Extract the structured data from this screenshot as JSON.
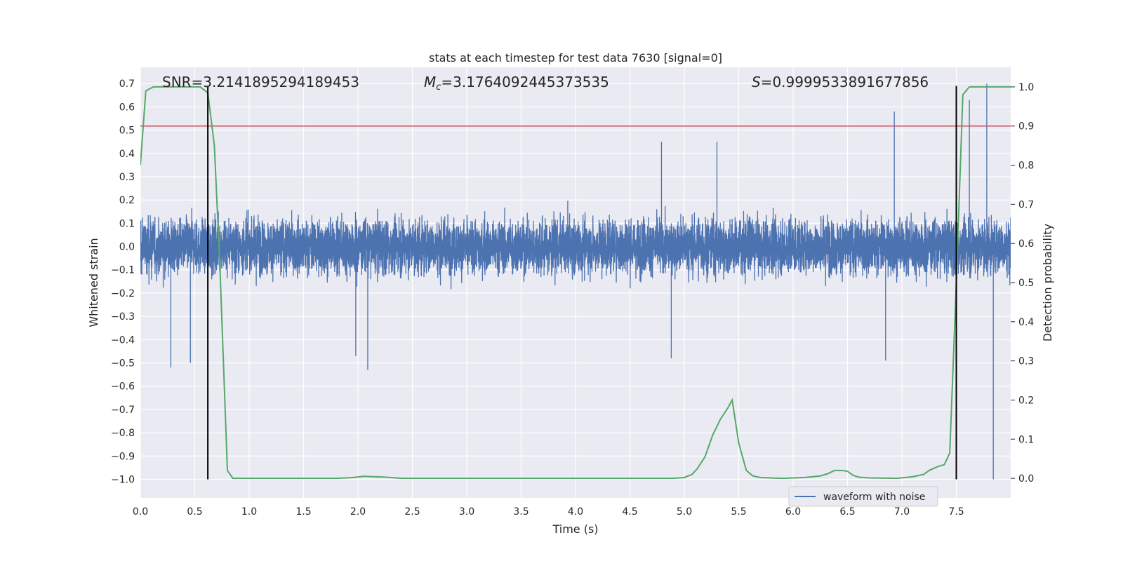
{
  "chart_data": {
    "type": "line",
    "title": "stats at each timestep for test data 7630 [signal=0]",
    "xlabel": "Time (s)",
    "ylabel": "Whitened strain",
    "y2label": "Detection probability",
    "xlim": [
      0,
      8
    ],
    "ylim": [
      -1.08,
      0.77
    ],
    "y2lim": [
      -0.05,
      1.05
    ],
    "xticks": [
      0.0,
      0.5,
      1.0,
      1.5,
      2.0,
      2.5,
      3.0,
      3.5,
      4.0,
      4.5,
      5.0,
      5.5,
      6.0,
      6.5,
      7.0,
      7.5
    ],
    "xtick_labels": [
      "0.0",
      "0.5",
      "1.0",
      "1.5",
      "2.0",
      "2.5",
      "3.0",
      "3.5",
      "4.0",
      "4.5",
      "5.0",
      "5.5",
      "6.0",
      "6.5",
      "7.0",
      "7.5"
    ],
    "yticks": [
      0.7,
      0.6,
      0.5,
      0.4,
      0.3,
      0.2,
      0.1,
      0.0,
      -0.1,
      -0.2,
      -0.3,
      -0.4,
      -0.5,
      -0.6,
      -0.7,
      -0.8,
      -0.9,
      -1.0
    ],
    "ytick_labels": [
      "0.7",
      "0.6",
      "0.5",
      "0.4",
      "0.3",
      "0.2",
      "0.1",
      "0.0",
      "−0.1",
      "−0.2",
      "−0.3",
      "−0.4",
      "−0.5",
      "−0.6",
      "−0.7",
      "−0.8",
      "−0.9",
      "−1.0"
    ],
    "y2ticks": [
      1.0,
      0.9,
      0.8,
      0.7,
      0.6,
      0.5,
      0.4,
      0.3,
      0.2,
      0.1,
      0.0
    ],
    "y2tick_labels": [
      "1.0",
      "0.9",
      "0.8",
      "0.7",
      "0.6",
      "0.5",
      "0.4",
      "0.3",
      "0.2",
      "0.1",
      "0.0"
    ],
    "annotations": {
      "snr": "SNR=3.2141895294189453",
      "mc_symbol": "M",
      "mc_sub": "c",
      "mc_value": "=3.1764092445373535",
      "s_symbol": "S",
      "s_value": "=0.9999533891677856"
    },
    "threshold": {
      "value": 0.9,
      "axis": "right",
      "color": "#c44e52"
    },
    "vlines": [
      0.62,
      7.5
    ],
    "vline_range": [
      -1.0,
      0.69
    ],
    "series": [
      {
        "name": "waveform with noise",
        "axis": "left",
        "color": "#4c72b0",
        "kind": "noise",
        "sigma": 0.095,
        "envelope_upper_typical": 0.3,
        "envelope_lower_typical": -0.3,
        "spikes": [
          {
            "x": 0.28,
            "y": -0.52
          },
          {
            "x": 0.46,
            "y": -0.5
          },
          {
            "x": 2.09,
            "y": -0.53
          },
          {
            "x": 1.98,
            "y": -0.47
          },
          {
            "x": 6.93,
            "y": 0.58
          },
          {
            "x": 7.78,
            "y": 0.7
          },
          {
            "x": 7.62,
            "y": 0.63
          },
          {
            "x": 7.84,
            "y": -1.0
          },
          {
            "x": 5.3,
            "y": 0.45
          },
          {
            "x": 4.79,
            "y": 0.45
          },
          {
            "x": 6.85,
            "y": -0.49
          },
          {
            "x": 4.88,
            "y": -0.48
          }
        ]
      },
      {
        "name": "detection probability",
        "axis": "right",
        "color": "#55a868",
        "x": [
          0.0,
          0.05,
          0.12,
          0.2,
          0.35,
          0.5,
          0.55,
          0.62,
          0.68,
          0.73,
          0.8,
          0.85,
          0.9,
          1.0,
          1.5,
          1.8,
          1.95,
          2.05,
          2.25,
          2.4,
          3.0,
          4.0,
          4.5,
          4.9,
          5.0,
          5.07,
          5.12,
          5.19,
          5.26,
          5.33,
          5.4,
          5.44,
          5.5,
          5.57,
          5.63,
          5.7,
          5.9,
          6.1,
          6.25,
          6.32,
          6.38,
          6.45,
          6.5,
          6.55,
          6.6,
          6.7,
          6.95,
          7.1,
          7.2,
          7.25,
          7.33,
          7.39,
          7.44,
          7.5,
          7.56,
          7.62,
          7.7,
          7.85,
          8.0
        ],
        "y": [
          0.8,
          0.99,
          1.0,
          1.0,
          1.0,
          1.0,
          1.0,
          0.985,
          0.85,
          0.55,
          0.02,
          0.0,
          0.0,
          0.0,
          0.0,
          0.0,
          0.002,
          0.005,
          0.003,
          0.0,
          0.0,
          0.0,
          0.0,
          0.0,
          0.002,
          0.01,
          0.025,
          0.055,
          0.11,
          0.15,
          0.18,
          0.2,
          0.09,
          0.02,
          0.006,
          0.002,
          0.0,
          0.002,
          0.006,
          0.012,
          0.02,
          0.02,
          0.018,
          0.008,
          0.003,
          0.001,
          0.0,
          0.004,
          0.01,
          0.02,
          0.03,
          0.035,
          0.065,
          0.5,
          0.98,
          1.0,
          1.0,
          1.0,
          1.0
        ]
      }
    ],
    "legend": {
      "label": "waveform with noise",
      "placement": "lower-right"
    }
  }
}
